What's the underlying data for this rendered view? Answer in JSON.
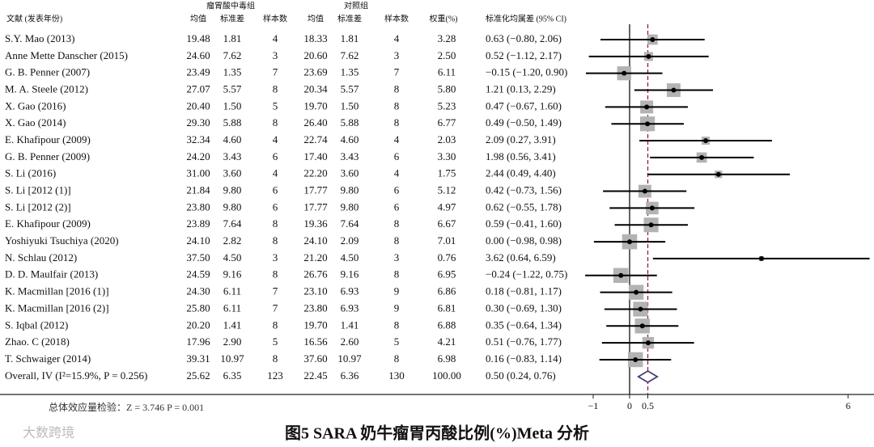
{
  "chart_data": {
    "type": "forest",
    "header": {
      "study": "文献 (发表年份)",
      "group1": "瘤胃酸中毒组",
      "group2": "对照组",
      "columns": [
        "均值",
        "标准差",
        "样本数",
        "均值",
        "标准差",
        "样本数"
      ],
      "weight": "权重(%)",
      "effect": "标准化均属差 (95% CI)"
    },
    "studies": [
      "S.Y. Mao (2013)",
      "Anne Mette Danscher (2015)",
      "G. B. Penner (2007)",
      "M. A. Steele (2012)",
      "X. Gao (2016)",
      "X. Gao (2014)",
      "E. Khafipour (2009)",
      "G. B. Penner (2009)",
      "S. Li (2016)",
      "S. Li [2012 (1)]",
      "S. Li [2012 (2)]",
      "E. Khafipour (2009)",
      "Yoshiyuki Tsuchiya (2020)",
      "N. Schlau (2012)",
      "D. D. Maulfair (2013)",
      "K. Macmillan [2016 (1)]",
      "K. Macmillan [2016 (2)]",
      "S. Iqbal (2012)",
      "Zhao. C (2018)",
      "T. Schwaiger (2014)"
    ],
    "table": [
      [
        "19.48",
        "1.81",
        "4",
        "18.33",
        "1.81",
        "4"
      ],
      [
        "24.60",
        "7.62",
        "3",
        "20.60",
        "7.62",
        "3"
      ],
      [
        "23.49",
        "1.35",
        "7",
        "23.69",
        "1.35",
        "7"
      ],
      [
        "27.07",
        "5.57",
        "8",
        "20.34",
        "5.57",
        "8"
      ],
      [
        "20.40",
        "1.50",
        "5",
        "19.70",
        "1.50",
        "8"
      ],
      [
        "29.30",
        "5.88",
        "8",
        "26.40",
        "5.88",
        "8"
      ],
      [
        "32.34",
        "4.60",
        "4",
        "22.74",
        "4.60",
        "4"
      ],
      [
        "24.20",
        "3.43",
        "6",
        "17.40",
        "3.43",
        "6"
      ],
      [
        "31.00",
        "3.60",
        "4",
        "22.20",
        "3.60",
        "4"
      ],
      [
        "21.84",
        "9.80",
        "6",
        "17.77",
        "9.80",
        "6"
      ],
      [
        "23.80",
        "9.80",
        "6",
        "17.77",
        "9.80",
        "6"
      ],
      [
        "23.89",
        "7.64",
        "8",
        "19.36",
        "7.64",
        "8"
      ],
      [
        "24.10",
        "2.82",
        "8",
        "24.10",
        "2.09",
        "8"
      ],
      [
        "37.50",
        "4.50",
        "3",
        "21.20",
        "4.50",
        "3"
      ],
      [
        "24.59",
        "9.16",
        "8",
        "26.76",
        "9.16",
        "8"
      ],
      [
        "24.30",
        "6.11",
        "7",
        "23.10",
        "6.93",
        "9"
      ],
      [
        "25.80",
        "6.11",
        "7",
        "23.80",
        "6.93",
        "9"
      ],
      [
        "20.20",
        "1.41",
        "8",
        "19.70",
        "1.41",
        "8"
      ],
      [
        "17.96",
        "2.90",
        "5",
        "16.56",
        "2.60",
        "5"
      ],
      [
        "39.31",
        "10.97",
        "8",
        "37.60",
        "10.97",
        "8"
      ]
    ],
    "weights": [
      3.28,
      2.5,
      6.11,
      5.8,
      5.23,
      6.77,
      2.03,
      3.3,
      1.75,
      5.12,
      4.97,
      6.67,
      7.01,
      0.76,
      6.95,
      6.86,
      6.81,
      6.88,
      4.21,
      6.98
    ],
    "weight_labels": [
      "3.28",
      "2.50",
      "6.11",
      "5.80",
      "5.23",
      "6.77",
      "2.03",
      "3.30",
      "1.75",
      "5.12",
      "4.97",
      "6.67",
      "7.01",
      "0.76",
      "6.95",
      "6.86",
      "6.81",
      "6.88",
      "4.21",
      "6.98"
    ],
    "values": [
      0.63,
      0.52,
      -0.15,
      1.21,
      0.47,
      0.49,
      2.09,
      1.98,
      2.44,
      0.42,
      0.62,
      0.59,
      0,
      3.62,
      -0.24,
      0.18,
      0.3,
      0.35,
      0.51,
      0.16
    ],
    "lower": [
      -0.8,
      -1.12,
      -1.2,
      0.13,
      -0.67,
      -0.5,
      0.27,
      0.56,
      0.49,
      -0.73,
      -0.55,
      -0.41,
      -0.98,
      0.64,
      -1.22,
      -0.81,
      -0.69,
      -0.64,
      -0.76,
      -0.83
    ],
    "upper": [
      2.06,
      2.17,
      0.9,
      2.29,
      1.6,
      1.49,
      3.91,
      3.41,
      4.4,
      1.56,
      1.78,
      1.6,
      0.98,
      6.59,
      0.75,
      1.17,
      1.3,
      1.34,
      1.77,
      1.14
    ],
    "value_labels": [
      "0.63 (−0.80, 2.06)",
      "0.52 (−1.12, 2.17)",
      "−0.15 (−1.20, 0.90)",
      "1.21 (0.13, 2.29)",
      "0.47 (−0.67, 1.60)",
      "0.49 (−0.50, 1.49)",
      "2.09 (0.27, 3.91)",
      "1.98 (0.56, 3.41)",
      "2.44 (0.49, 4.40)",
      "0.42 (−0.73, 1.56)",
      "0.62 (−0.55, 1.78)",
      "0.59 (−0.41, 1.60)",
      "0.00 (−0.98, 0.98)",
      "3.62 (0.64, 6.59)",
      "−0.24 (−1.22, 0.75)",
      "0.18 (−0.81, 1.17)",
      "0.30 (−0.69, 1.30)",
      "0.35 (−0.64, 1.34)",
      "0.51 (−0.76, 1.77)",
      "0.16 (−0.83, 1.14)"
    ],
    "overall": {
      "label": "Overall, IV (I²=15.9%, P = 0.256)",
      "table": [
        "25.62",
        "6.35",
        "123",
        "22.45",
        "6.36",
        "130"
      ],
      "weight_label": "100.00",
      "value": 0.5,
      "lower": 0.24,
      "upper": 0.76,
      "value_label": "0.50 (0.24, 0.76)"
    },
    "xlim": [
      -1,
      6
    ],
    "xticks": [
      {
        "value": -1,
        "label": "−1"
      },
      0,
      0.5,
      6
    ],
    "footer": "总体效应量检验：Z = 3.746  P = 0.001",
    "caption": "图5   SARA 奶牛瘤胃丙酸比例(%)Meta 分析",
    "watermark": "大数跨境"
  }
}
